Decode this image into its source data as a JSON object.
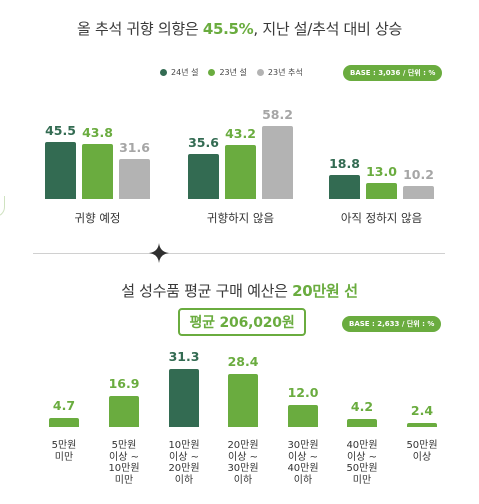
{
  "top": {
    "headline_pre": "올 추석 귀향 의향은 ",
    "headline_accent": "45.5%",
    "headline_post": ", 지난 설/추석 대비 상승",
    "legend": [
      {
        "label": "24년 설",
        "color": "#336b52"
      },
      {
        "label": "23년 설",
        "color": "#6aac3f"
      },
      {
        "label": "23년 추석",
        "color": "#b3b3b3"
      }
    ],
    "base": "BASE : 3,036 / 단위 : %"
  },
  "bottom": {
    "headline_pre": "설 성수품  평균 구매 예산은 ",
    "headline_accent": "20만원 선",
    "total_label": "평균  206,020원",
    "base": "BASE : 2,633 / 단위 : %"
  },
  "colors": {
    "dark_green": "#336b52",
    "green": "#6aac3f",
    "gray": "#b3b3b3",
    "gray_text": "#a6a6a6"
  },
  "chart_data": [
    {
      "type": "bar",
      "categories": [
        "귀향 예정",
        "귀향하지 않음",
        "아직 정하지 않음"
      ],
      "series": [
        {
          "name": "24년 설",
          "values": [
            45.5,
            35.6,
            18.8
          ]
        },
        {
          "name": "23년 설",
          "values": [
            43.8,
            43.2,
            13.0
          ]
        },
        {
          "name": "23년 추석",
          "values": [
            31.6,
            58.2,
            10.2
          ]
        }
      ],
      "value_labels": [
        [
          "45.5",
          "35.6",
          "18.8"
        ],
        [
          "43.8",
          "43.2",
          "13.0"
        ],
        [
          "31.6",
          "58.2",
          "10.2"
        ]
      ],
      "ylim": [
        0,
        60
      ]
    },
    {
      "type": "bar",
      "categories": [
        "5만원\n미만",
        "5만원\n이상 ~\n10만원\n미만",
        "10만원\n이상 ~\n20만원\n이하",
        "20만원\n이상 ~\n30만원\n이하",
        "30만원\n이상 ~\n40만원\n이하",
        "40만원\n이상 ~\n50만원\n미만",
        "50만원\n이상"
      ],
      "values": [
        4.7,
        16.9,
        31.3,
        28.4,
        12.0,
        4.2,
        2.4
      ],
      "value_labels": [
        "4.7",
        "16.9",
        "31.3",
        "28.4",
        "12.0",
        "4.2",
        "2.4"
      ],
      "ylim": [
        0,
        32
      ]
    }
  ]
}
